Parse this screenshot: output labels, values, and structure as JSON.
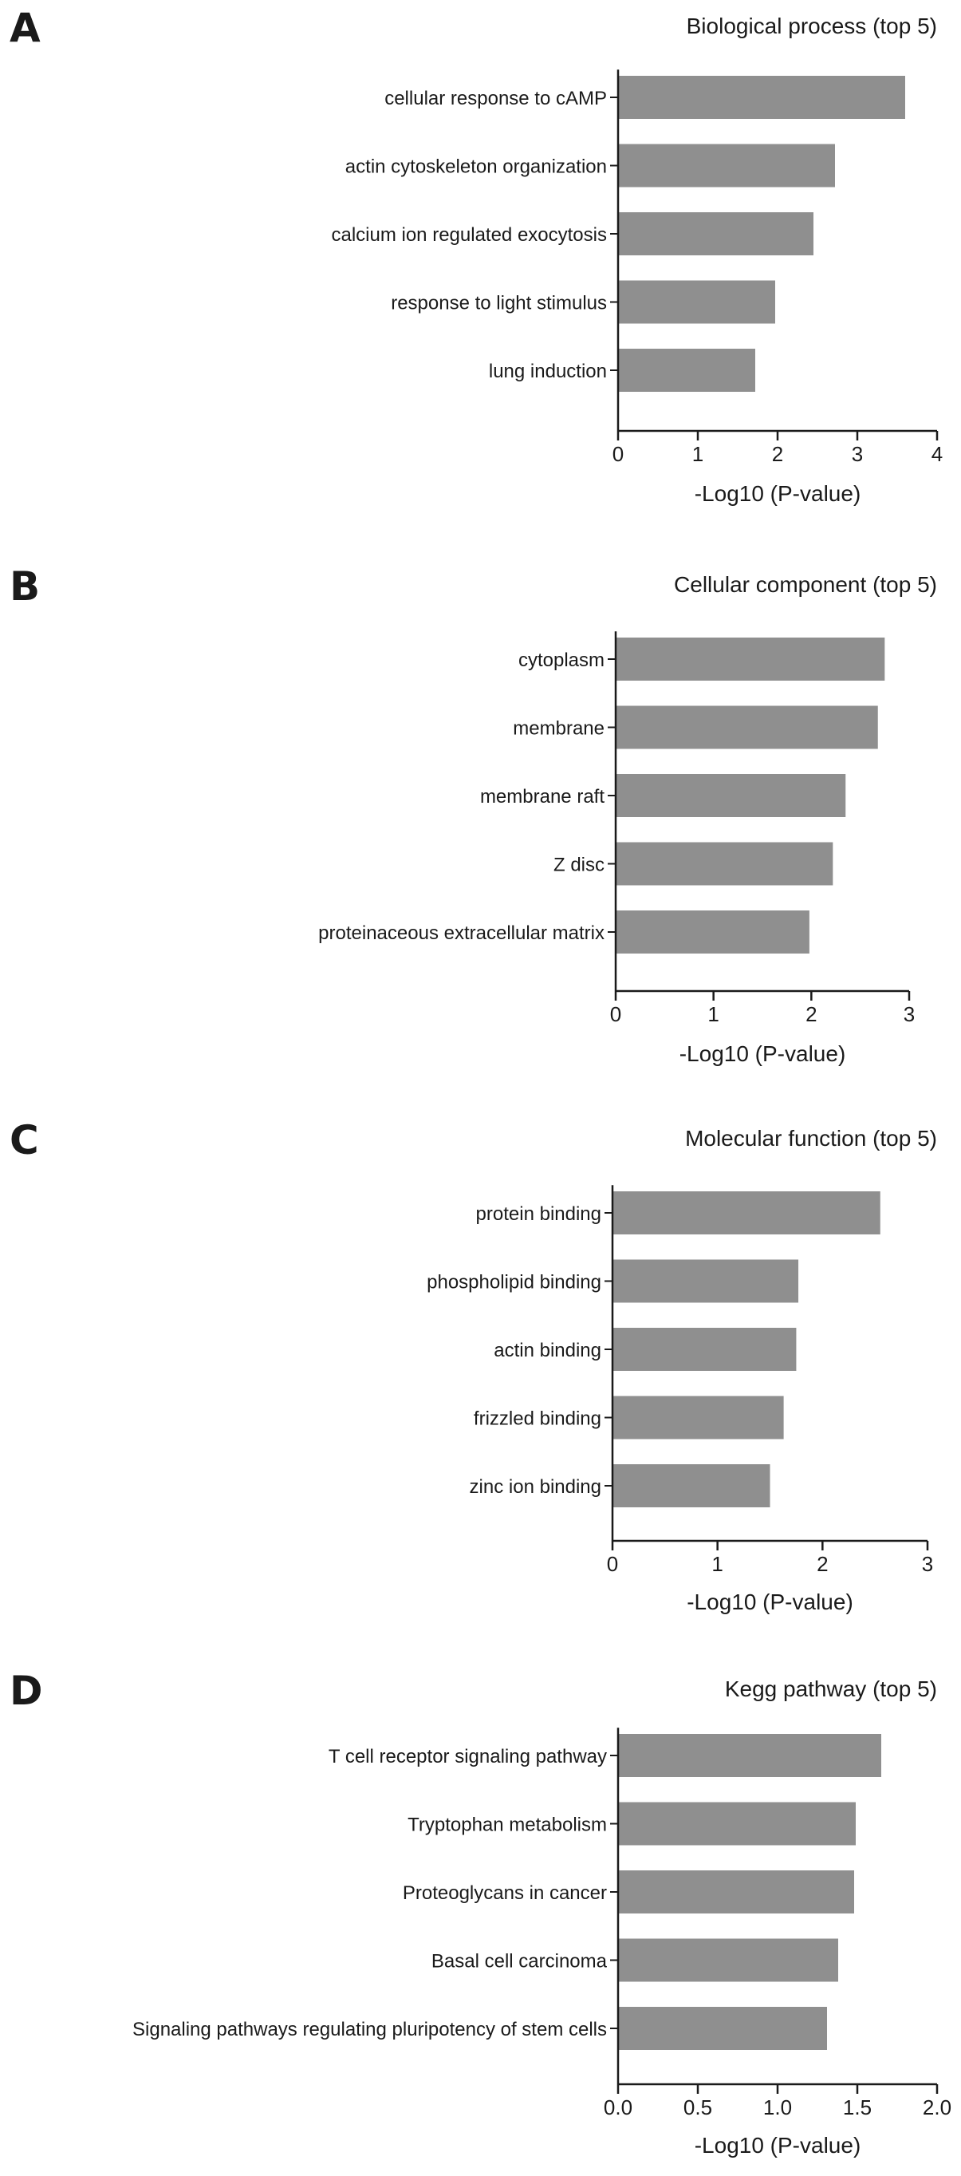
{
  "chart_data": [
    {
      "panel": "A",
      "type": "bar",
      "orientation": "horizontal",
      "title": "Biological process (top 5)",
      "xlabel": "-Log10 (P-value)",
      "ylabel": "",
      "xlim": [
        0,
        4
      ],
      "ticks": [
        0,
        1,
        2,
        3,
        4
      ],
      "tick_labels": [
        "0",
        "1",
        "2",
        "3",
        "4"
      ],
      "bar_color": "#8f8f8f",
      "categories": [
        "cellular response to cAMP",
        "actin cytoskeleton organization",
        "calcium ion regulated exocytosis",
        "response to light stimulus",
        "lung induction"
      ],
      "values": [
        3.6,
        2.72,
        2.45,
        1.97,
        1.72
      ]
    },
    {
      "panel": "B",
      "type": "bar",
      "orientation": "horizontal",
      "title": "Cellular component (top 5)",
      "xlabel": "-Log10 (P-value)",
      "ylabel": "",
      "xlim": [
        0,
        3
      ],
      "ticks": [
        0,
        1,
        2,
        3
      ],
      "tick_labels": [
        "0",
        "1",
        "2",
        "3"
      ],
      "bar_color": "#8f8f8f",
      "categories": [
        "cytoplasm",
        "membrane",
        "membrane raft",
        "Z disc",
        "proteinaceous extracellular matrix"
      ],
      "values": [
        2.75,
        2.68,
        2.35,
        2.22,
        1.98
      ]
    },
    {
      "panel": "C",
      "type": "bar",
      "orientation": "horizontal",
      "title": "Molecular function (top 5)",
      "xlabel": "-Log10 (P-value)",
      "ylabel": "",
      "xlim": [
        0,
        3
      ],
      "ticks": [
        0,
        1,
        2,
        3
      ],
      "tick_labels": [
        "0",
        "1",
        "2",
        "3"
      ],
      "bar_color": "#8f8f8f",
      "categories": [
        "protein binding",
        "phospholipid binding",
        "actin binding",
        "frizzled binding",
        "zinc ion binding"
      ],
      "values": [
        2.55,
        1.77,
        1.75,
        1.63,
        1.5
      ]
    },
    {
      "panel": "D",
      "type": "bar",
      "orientation": "horizontal",
      "title": "Kegg pathway (top 5)",
      "xlabel": "-Log10 (P-value)",
      "ylabel": "",
      "xlim": [
        0,
        2
      ],
      "ticks": [
        0,
        0.5,
        1,
        1.5,
        2
      ],
      "tick_labels": [
        "0.0",
        "0.5",
        "1.0",
        "1.5",
        "2.0"
      ],
      "bar_color": "#8f8f8f",
      "categories": [
        "T cell receptor signaling pathway",
        "Tryptophan metabolism",
        "Proteoglycans in cancer",
        "Basal cell carcinoma",
        "Signaling pathways regulating pluripotency of stem cells"
      ],
      "values": [
        1.65,
        1.49,
        1.48,
        1.38,
        1.31
      ]
    }
  ]
}
